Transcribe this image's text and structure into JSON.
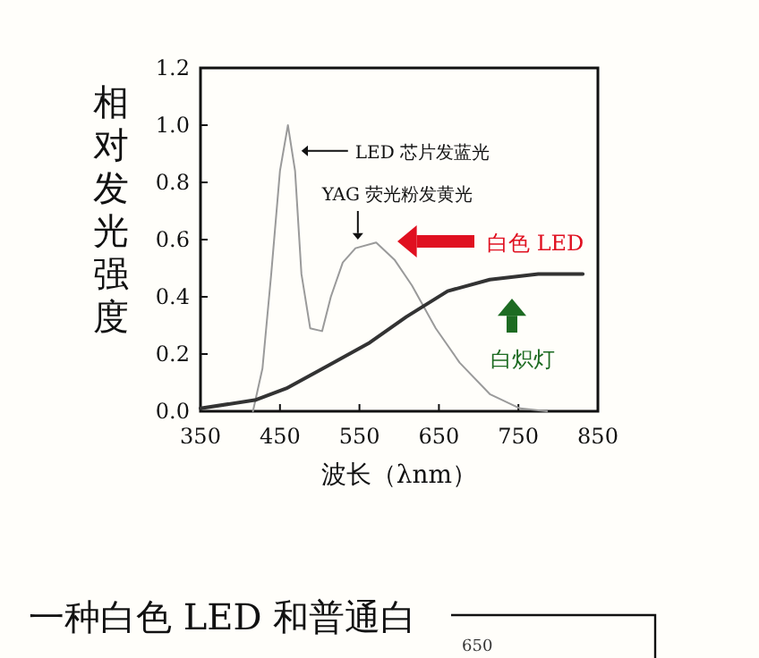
{
  "chart_data": {
    "type": "line",
    "xlabel": "波长（λnm）",
    "ylabel": "相对发光强度",
    "xlim": [
      350,
      850
    ],
    "ylim": [
      0,
      1.2
    ],
    "xticks": [
      350,
      450,
      550,
      650,
      750,
      850
    ],
    "yticks": [
      {
        "value": 0,
        "label": "0.0"
      },
      {
        "value": 0.2,
        "label": "0.2"
      },
      {
        "value": 0.4,
        "label": "0.4"
      },
      {
        "value": 0.6,
        "label": "0.6"
      },
      {
        "value": 0.8,
        "label": "0.8"
      },
      {
        "value": 1.0,
        "label": "1.0"
      },
      {
        "value": 1.2,
        "label": "1.2"
      }
    ],
    "grid": false,
    "series": [
      {
        "color": "#9a9a9a",
        "x": [
          416,
          428,
          439,
          450,
          460,
          469,
          477,
          488,
          503,
          514,
          529,
          545,
          571,
          594,
          616,
          646,
          676,
          714,
          752,
          786
        ],
        "values": [
          0,
          0.15,
          0.48,
          0.84,
          1.0,
          0.84,
          0.48,
          0.29,
          0.28,
          0.4,
          0.52,
          0.57,
          0.59,
          0.53,
          0.44,
          0.29,
          0.17,
          0.06,
          0.01,
          0
        ]
      },
      {
        "color": "#333333",
        "x": [
          350,
          420,
          458,
          511,
          563,
          609,
          661,
          714,
          775,
          831
        ],
        "values": [
          0.01,
          0.04,
          0.08,
          0.16,
          0.24,
          0.33,
          0.42,
          0.46,
          0.48,
          0.48
        ]
      }
    ],
    "annotations": [
      {
        "text": "LED 芯片发蓝光",
        "x": 477,
        "y": 0.91
      },
      {
        "text": "YAG 荧光粉发黄光",
        "x": 548,
        "y": 0.6
      },
      "白色 LED",
      "白炽灯",
      "一种白色 LED 和普通白",
      "650"
    ]
  }
}
